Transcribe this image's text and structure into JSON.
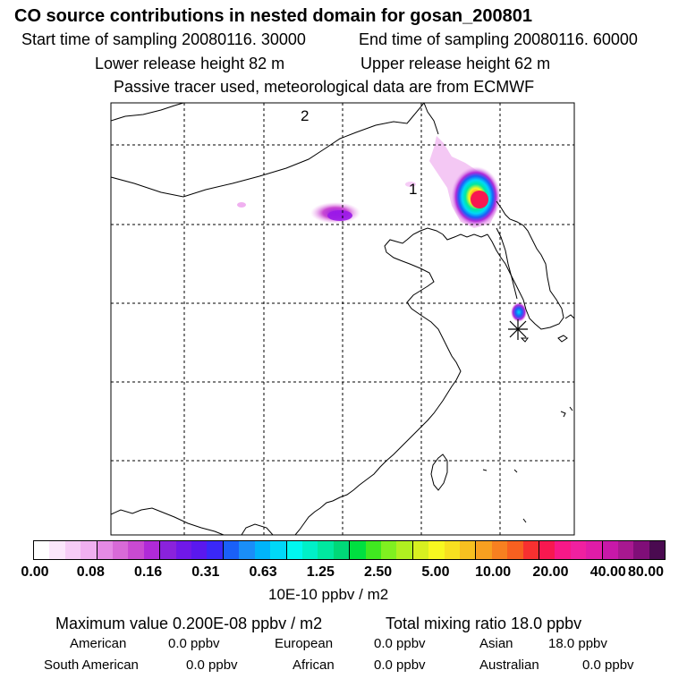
{
  "header": {
    "title": "CO  source contributions in nested domain for gosan_200801",
    "start_time": "Start time of sampling 20080116. 30000",
    "end_time": "End time of sampling 20080116. 60000",
    "lower_height": "Lower release height   82 m",
    "upper_height": "Upper release height   62 m",
    "tracer_note": "Passive tracer used, meteorological data are from ECMWF"
  },
  "map": {
    "label_1": "1",
    "label_2": "2",
    "receptor_marker": "star-icon"
  },
  "colorbar": {
    "colors": [
      "#ffffff",
      "#fbe6fb",
      "#f6ccf6",
      "#f0b0f0",
      "#e58ae5",
      "#d86ad8",
      "#c94ad2",
      "#b02ad8",
      "#8a22dc",
      "#7018e8",
      "#5a18ee",
      "#3a28f8",
      "#1a60f8",
      "#1a8ef8",
      "#00b4fa",
      "#00d8f8",
      "#00f8f0",
      "#00f0c8",
      "#00e8a0",
      "#00d878",
      "#00e040",
      "#40e820",
      "#80f020",
      "#b0f020",
      "#d8f020",
      "#f8f820",
      "#f8e020",
      "#f8c020",
      "#f8a020",
      "#f88020",
      "#f86020",
      "#f83030",
      "#f81850",
      "#f81888",
      "#f020a0",
      "#e01ca8",
      "#c818a8",
      "#a81890",
      "#800e78",
      "#4a0a50"
    ],
    "ticks": [
      "0.00",
      "0.08",
      "0.16",
      "0.31",
      "0.63",
      "1.25",
      "2.50",
      "5.00",
      "10.00",
      "20.00",
      "40.00",
      "80.00"
    ],
    "unit": "10E-10 ppbv / m2"
  },
  "summary": {
    "max_value": "Maximum value  0.200E-08 ppbv / m2",
    "total_mixing": "Total mixing ratio       18.0 ppbv"
  },
  "regions": [
    {
      "name": "American",
      "value": "0.0 ppbv"
    },
    {
      "name": "European",
      "value": "0.0 ppbv"
    },
    {
      "name": "Asian",
      "value": "18.0 ppbv"
    },
    {
      "name": "South American",
      "value": "0.0 ppbv"
    },
    {
      "name": "African",
      "value": "0.0 ppbv"
    },
    {
      "name": "Australian",
      "value": "0.0 ppbv"
    }
  ]
}
